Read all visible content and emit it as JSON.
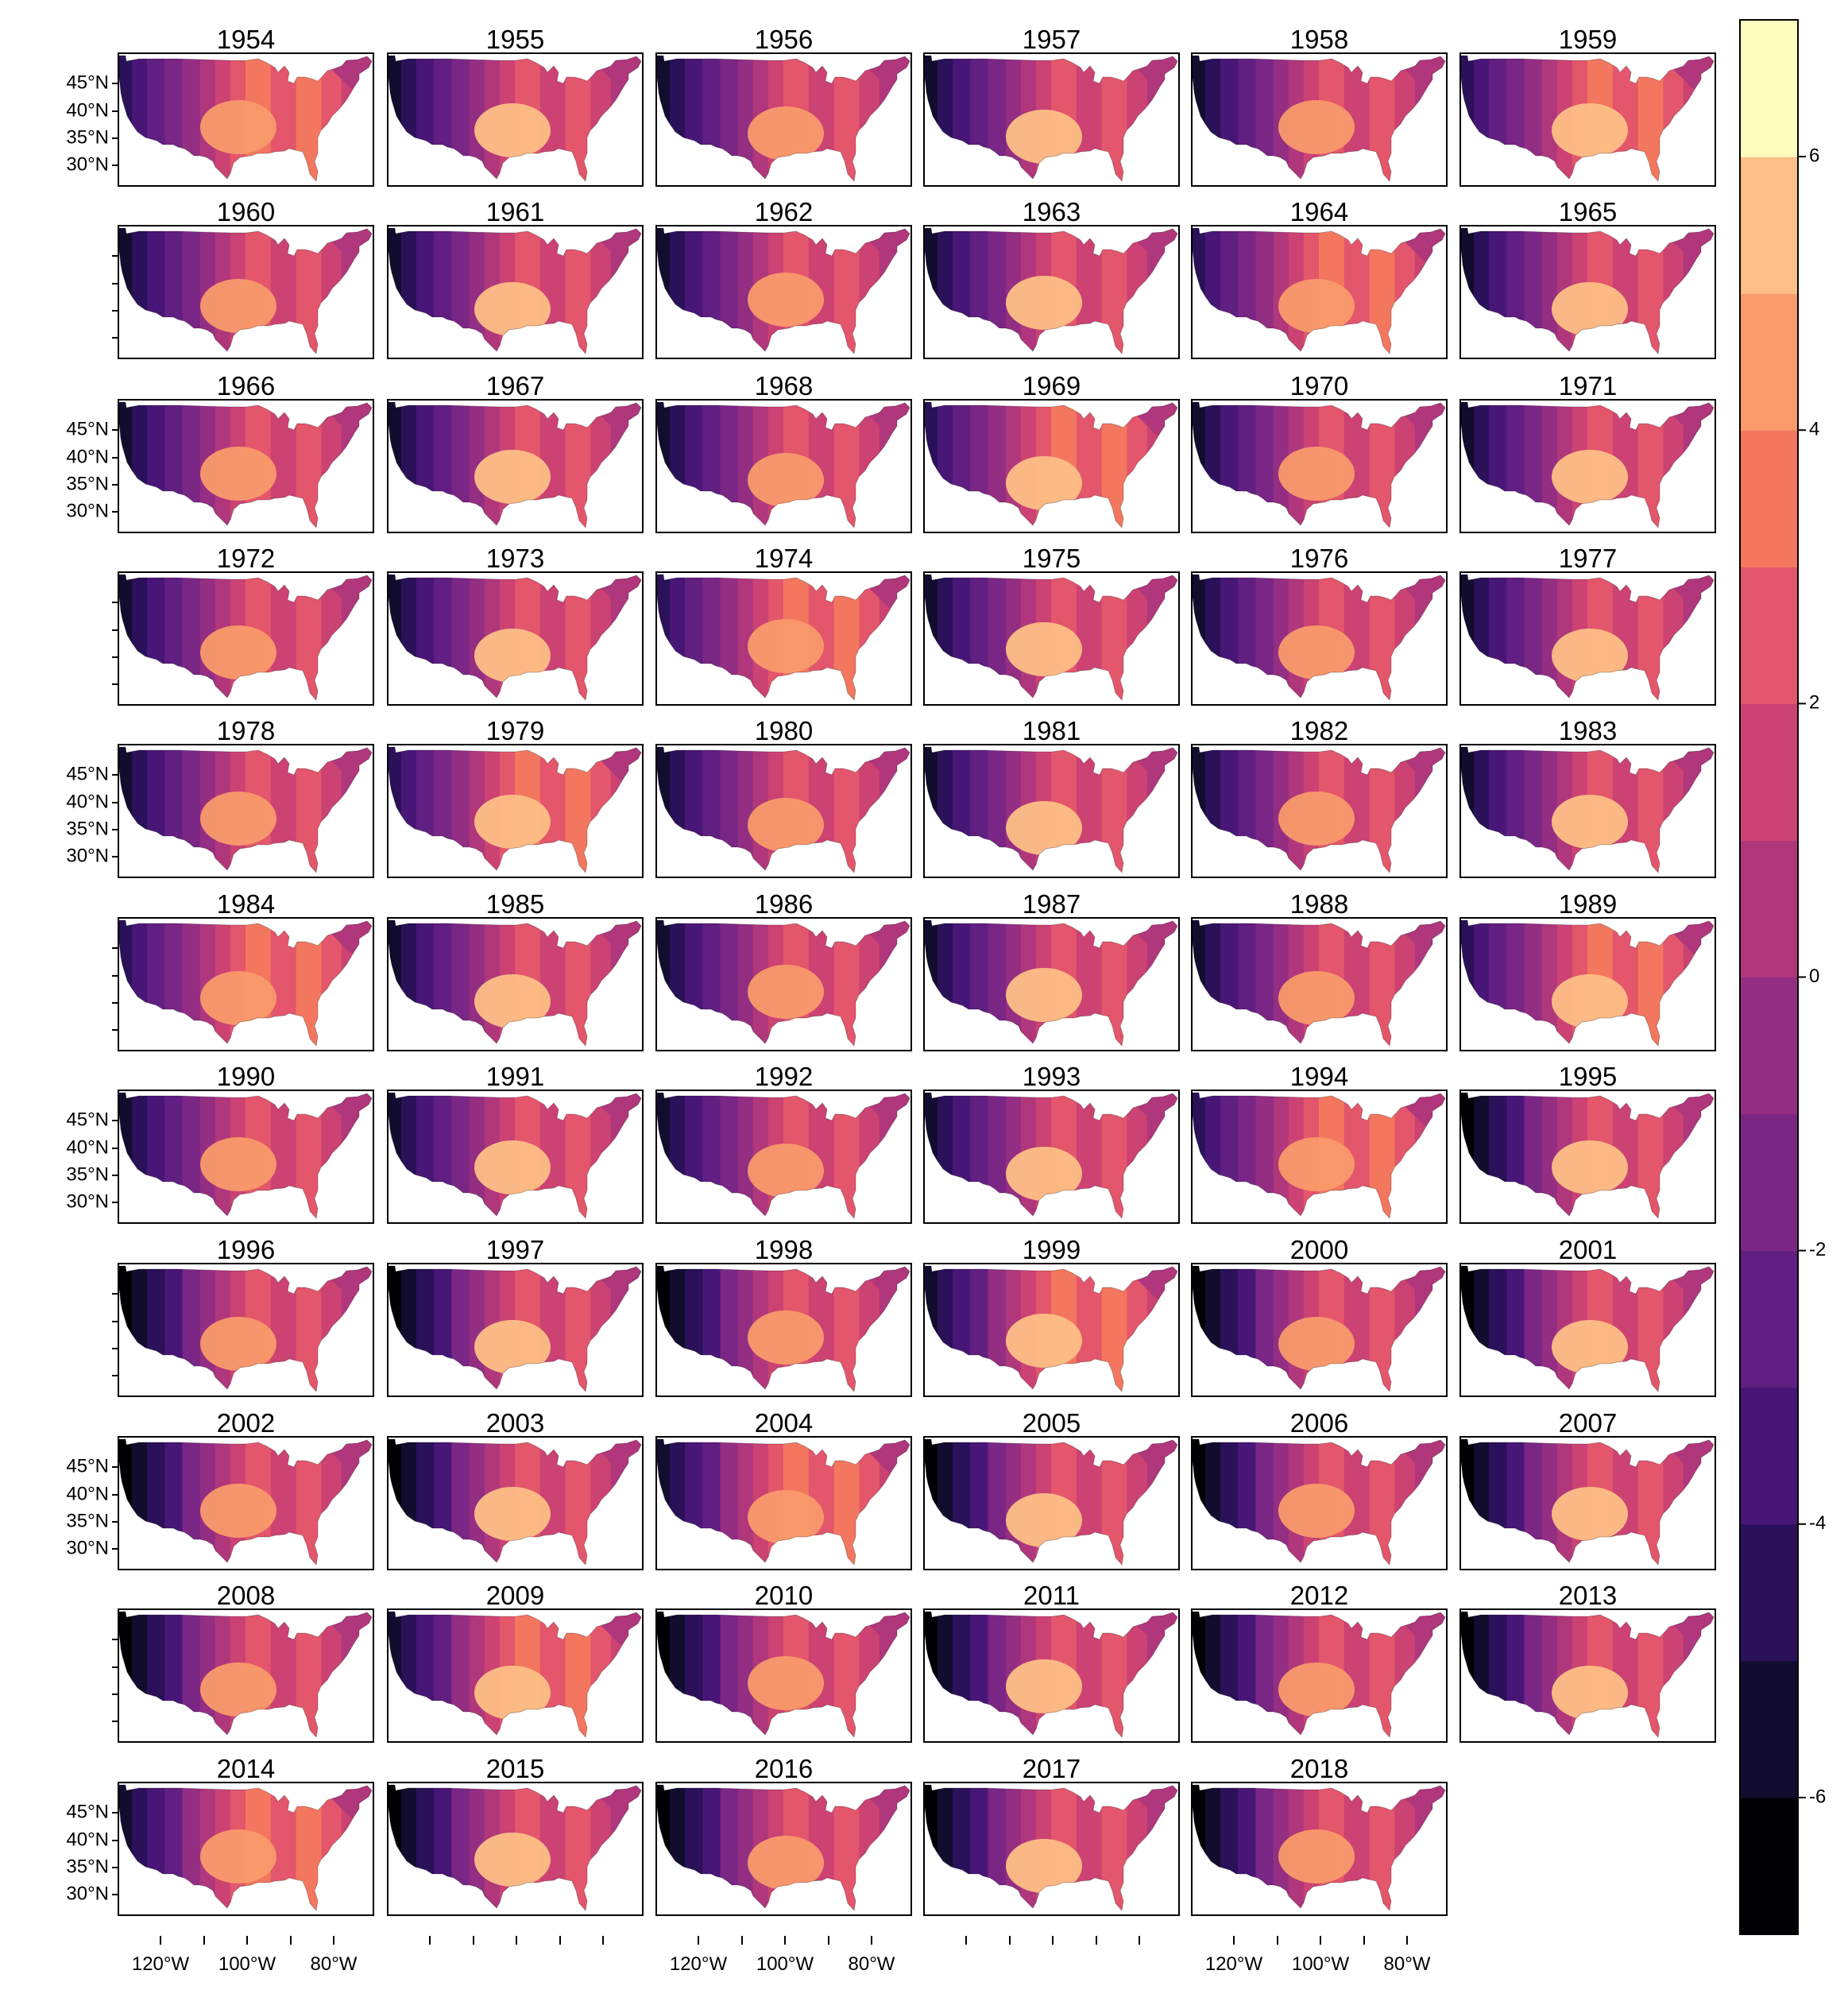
{
  "figure": {
    "type": "small-multiple choropleth maps",
    "region": "contiguous-us",
    "layout": {
      "columns": 6,
      "rows": 11
    },
    "panels": [
      "1954",
      "1955",
      "1956",
      "1957",
      "1958",
      "1959",
      "1960",
      "1961",
      "1962",
      "1963",
      "1964",
      "1965",
      "1966",
      "1967",
      "1968",
      "1969",
      "1970",
      "1971",
      "1972",
      "1973",
      "1974",
      "1975",
      "1976",
      "1977",
      "1978",
      "1979",
      "1980",
      "1981",
      "1982",
      "1983",
      "1984",
      "1985",
      "1986",
      "1987",
      "1988",
      "1989",
      "1990",
      "1991",
      "1992",
      "1993",
      "1994",
      "1995",
      "1996",
      "1997",
      "1998",
      "1999",
      "2000",
      "2001",
      "2002",
      "2003",
      "2004",
      "2005",
      "2006",
      "2007",
      "2008",
      "2009",
      "2010",
      "2011",
      "2012",
      "2013",
      "2014",
      "2015",
      "2016",
      "2017",
      "2018"
    ],
    "lat_labels": [
      "45°N",
      "40°N",
      "35°N",
      "30°N"
    ],
    "lat_label_rows": [
      0,
      2,
      4,
      6,
      8,
      10
    ],
    "lon_labels": [
      "120°W",
      "100°W",
      "80°W"
    ],
    "lon_label_columns": [
      0,
      2,
      4
    ],
    "colorbar": {
      "tick_labels": [
        "6",
        "4",
        "2",
        "0",
        "-2",
        "-4",
        "-6"
      ],
      "tick_values": [
        6,
        4,
        2,
        0,
        -2,
        -4,
        -6
      ],
      "range": [
        -7,
        7
      ],
      "step": 1,
      "colors_low_to_high": [
        "#000004",
        "#120c2f",
        "#2a1159",
        "#481677",
        "#611f81",
        "#7a2685",
        "#942e82",
        "#b0377c",
        "#cb4273",
        "#e3566b",
        "#f3775f",
        "#f99a6b",
        "#fdbf86",
        "#fcfdbf"
      ]
    }
  }
}
